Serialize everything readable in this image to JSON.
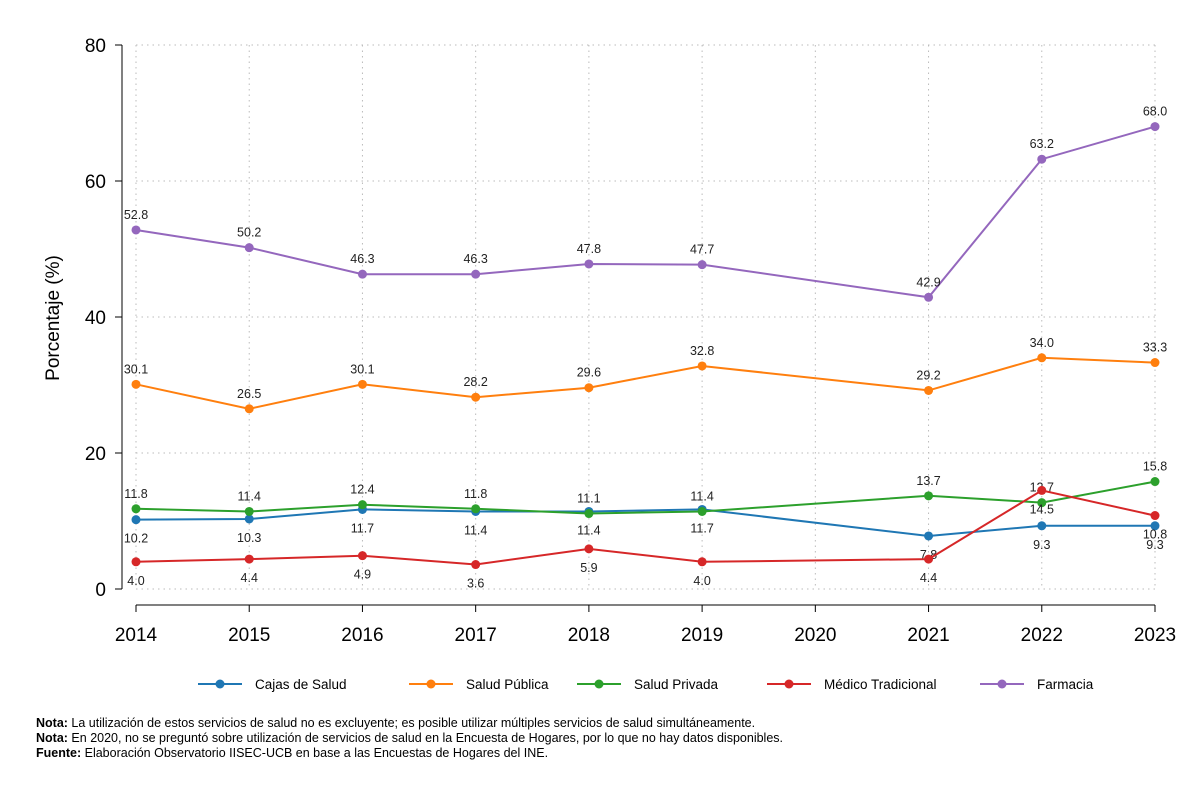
{
  "chart_data": {
    "type": "line",
    "title": "",
    "xlabel": "",
    "ylabel": "Porcentaje (%)",
    "categories": [
      "2014",
      "2015",
      "2016",
      "2017",
      "2018",
      "2019",
      "2020",
      "2021",
      "2022",
      "2023"
    ],
    "ylim": [
      0,
      80
    ],
    "yticks": [
      0,
      20,
      40,
      60,
      80
    ],
    "grid": true,
    "legend_position": "bottom",
    "series": [
      {
        "name": "Cajas de Salud",
        "color": "#1f77b4",
        "values": [
          10.2,
          10.3,
          11.7,
          11.4,
          11.4,
          11.7,
          null,
          7.8,
          9.3,
          9.3
        ],
        "labels": [
          "10.2",
          "10.3",
          "11.7",
          "11.4",
          "11.4",
          "11.7",
          "",
          "7.8",
          "9.3",
          "9.3"
        ],
        "label_pos": "below"
      },
      {
        "name": "Salud Pública",
        "color": "#ff7f0e",
        "values": [
          30.1,
          26.5,
          30.1,
          28.2,
          29.6,
          32.8,
          null,
          29.2,
          34.0,
          33.3
        ],
        "labels": [
          "30.1",
          "26.5",
          "30.1",
          "28.2",
          "29.6",
          "32.8",
          "",
          "29.2",
          "34.0",
          "33.3"
        ],
        "label_pos": "above"
      },
      {
        "name": "Salud Privada",
        "color": "#2ca02c",
        "values": [
          11.8,
          11.4,
          12.4,
          11.8,
          11.1,
          11.4,
          null,
          13.7,
          12.7,
          15.8
        ],
        "labels": [
          "11.8",
          "11.4",
          "12.4",
          "11.8",
          "11.1",
          "11.4",
          "",
          "13.7",
          "12.7",
          "15.8"
        ],
        "label_pos": "above"
      },
      {
        "name": "Médico Tradicional",
        "color": "#d62728",
        "values": [
          4.0,
          4.4,
          4.9,
          3.6,
          5.9,
          4.0,
          null,
          4.4,
          14.5,
          10.8
        ],
        "labels": [
          "4.0",
          "4.4",
          "4.9",
          "3.6",
          "5.9",
          "4.0",
          "",
          "4.4",
          "14.5",
          "10.8"
        ],
        "label_pos": "below"
      },
      {
        "name": "Farmacia",
        "color": "#9467bd",
        "values": [
          52.8,
          50.2,
          46.3,
          46.3,
          47.8,
          47.7,
          null,
          42.9,
          63.2,
          68.0
        ],
        "labels": [
          "52.8",
          "50.2",
          "46.3",
          "46.3",
          "47.8",
          "47.7",
          "",
          "42.9",
          "63.2",
          "68.0"
        ],
        "label_pos": "above"
      }
    ]
  },
  "notes": {
    "note1_label": "Nota:",
    "note1_text": " La utilización de estos servicios de salud no es excluyente; es posible utilizar múltiples servicios de salud simultáneamente.",
    "note2_label": "Nota:",
    "note2_text": " En 2020, no se preguntó sobre utilización de servicios de salud en la Encuesta de Hogares, por lo que no hay datos disponibles.",
    "source_label": "Fuente:",
    "source_text": " Elaboración Observatorio IISEC-UCB en base a las Encuestas de Hogares del INE."
  }
}
